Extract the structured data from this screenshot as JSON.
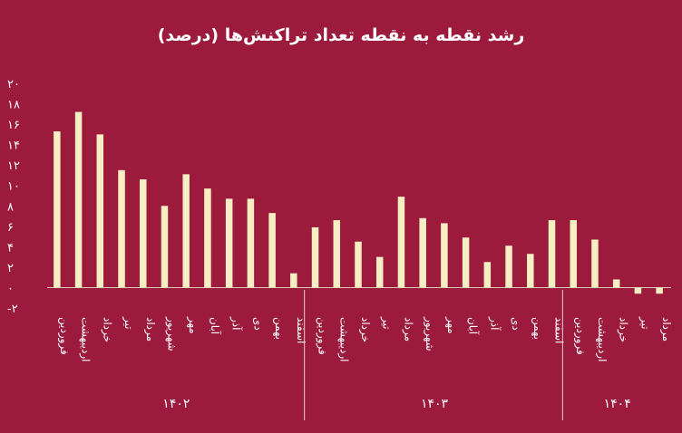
{
  "chart_data": {
    "type": "bar",
    "title": "رشد نقطه به نقطه تعداد تراکنش‌ها (درصد)",
    "ylim": [
      -2,
      20
    ],
    "yticks": [
      "-۲",
      "۰",
      "۲",
      "۴",
      "۶",
      "۸",
      "۱۰",
      "۱۲",
      "۱۴",
      "۱۶",
      "۱۸",
      "۲۰"
    ],
    "ytick_values": [
      -2,
      0,
      2,
      4,
      6,
      8,
      10,
      12,
      14,
      16,
      18,
      20
    ],
    "grid": false,
    "legend": "none",
    "bar_color": "#f7efc3",
    "background_color": "#9c1a3c",
    "categories": [
      "فروردین",
      "اردیبهشت",
      "خرداد",
      "تیر",
      "مرداد",
      "شهریور",
      "مهر",
      "آبان",
      "آذر",
      "دی",
      "بهمن",
      "اسفند",
      "فروردین",
      "اردیبهشت",
      "خرداد",
      "تیر",
      "مرداد",
      "شهریور",
      "مهر",
      "آبان",
      "آذر",
      "دی",
      "بهمن",
      "اسفند",
      "فروردین",
      "اردیبهشت",
      "خرداد",
      "تیر",
      "مرداد"
    ],
    "values": [
      15.3,
      17.2,
      15.0,
      11.5,
      10.6,
      8.0,
      11.1,
      9.7,
      8.7,
      8.7,
      7.3,
      1.4,
      5.9,
      6.6,
      4.5,
      3.0,
      8.9,
      6.8,
      6.3,
      4.9,
      2.5,
      4.1,
      3.3,
      6.6,
      6.6,
      4.7,
      0.8,
      -0.6,
      -0.6
    ],
    "groups": [
      {
        "label": "۱۴۰۲",
        "start": 0,
        "end": 11
      },
      {
        "label": "۱۴۰۳",
        "start": 12,
        "end": 23
      },
      {
        "label": "۱۴۰۴",
        "start": 24,
        "end": 28
      }
    ]
  }
}
